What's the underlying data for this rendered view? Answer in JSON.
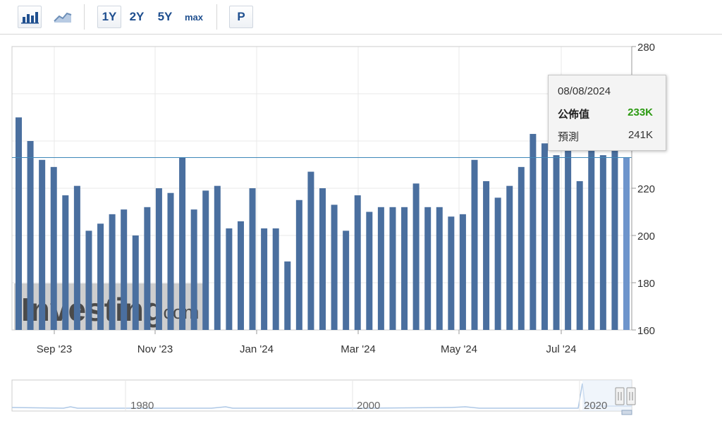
{
  "toolbar": {
    "icons": [
      "bar-chart-icon",
      "line-chart-icon"
    ],
    "ranges": [
      {
        "label": "1Y",
        "active": true
      },
      {
        "label": "2Y",
        "active": false
      },
      {
        "label": "5Y",
        "active": false
      },
      {
        "label": "max",
        "active": false
      }
    ],
    "p_label": "P"
  },
  "watermark": {
    "brand": "Investing",
    "suffix": ".com"
  },
  "tooltip": {
    "date": "08/08/2024",
    "actual_label": "公佈值",
    "actual_value": "233K",
    "forecast_label": "預測",
    "forecast_value": "241K"
  },
  "colors": {
    "bar": "#4a6f9f",
    "bar_highlight": "#6e95cc",
    "reference_line": "#3f87b8",
    "actual_value": "#2c9a12"
  },
  "chart_data": {
    "type": "bar",
    "ylim": [
      160,
      280
    ],
    "yticks": [
      160,
      180,
      200,
      220,
      280
    ],
    "y_axis_position": "right",
    "x_tick_labels": [
      "Sep '23",
      "Nov '23",
      "Jan '24",
      "Mar '24",
      "May '24",
      "Jul '24"
    ],
    "grid": true,
    "reference_line": 233,
    "values": [
      250,
      240,
      232,
      229,
      217,
      221,
      202,
      205,
      209,
      211,
      200,
      212,
      220,
      218,
      233,
      211,
      219,
      221,
      203,
      206,
      220,
      203,
      203,
      189,
      215,
      227,
      220,
      213,
      202,
      217,
      210,
      212,
      212,
      212,
      222,
      212,
      212,
      208,
      209,
      232,
      223,
      216,
      221,
      229,
      243,
      239,
      234,
      238,
      223,
      238,
      234,
      238,
      233
    ],
    "highlight_index": 52
  },
  "navigator": {
    "labels": [
      "1980",
      "2000",
      "2020"
    ]
  }
}
